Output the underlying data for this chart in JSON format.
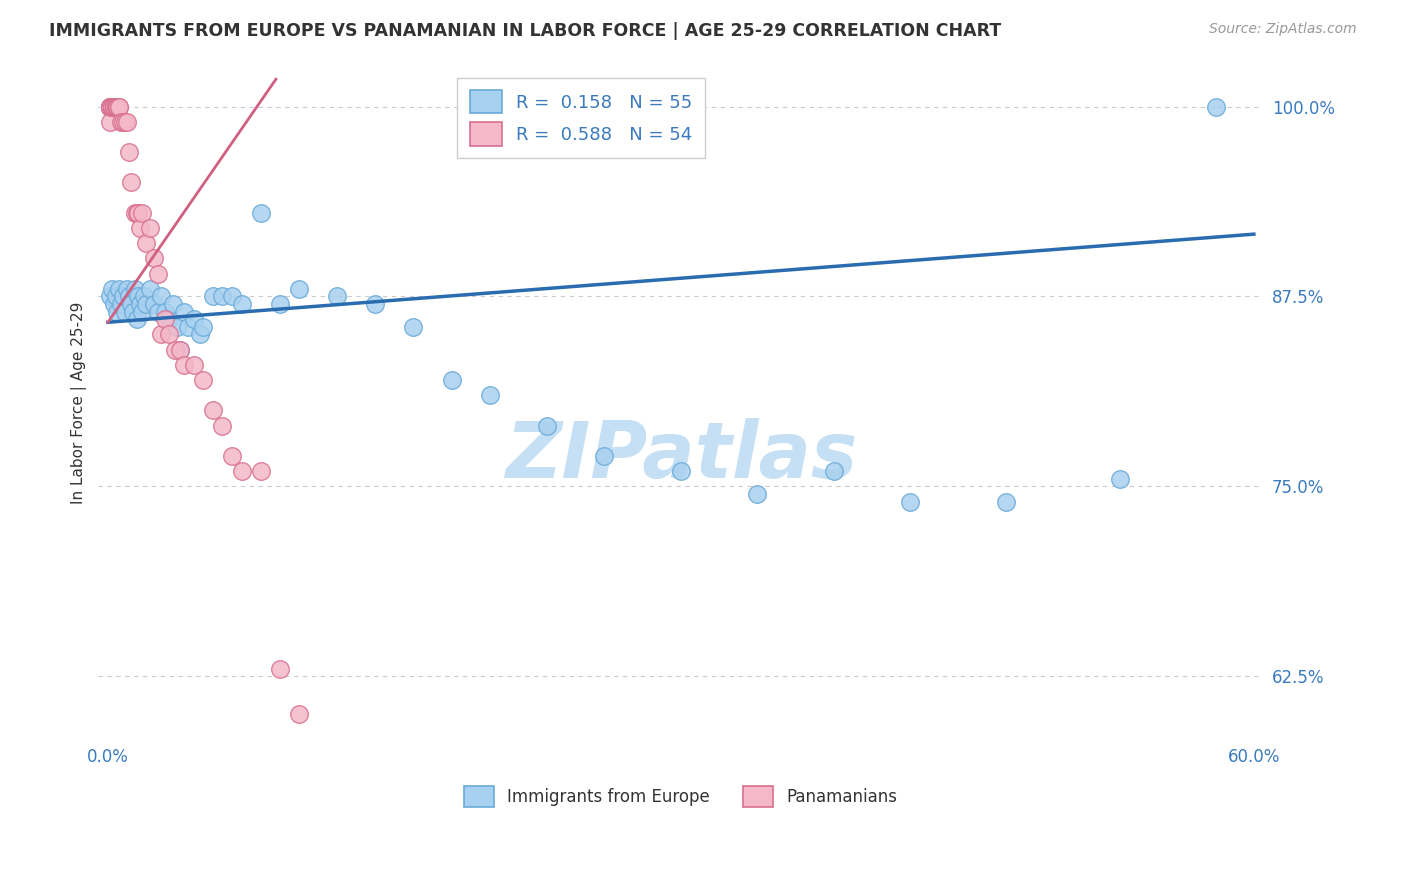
{
  "title": "IMMIGRANTS FROM EUROPE VS PANAMANIAN IN LABOR FORCE | AGE 25-29 CORRELATION CHART",
  "source": "Source: ZipAtlas.com",
  "ylabel": "In Labor Force | Age 25-29",
  "xlim": [
    -0.005,
    0.605
  ],
  "ylim": [
    0.585,
    1.025
  ],
  "xticks": [
    0.0,
    0.1,
    0.2,
    0.3,
    0.4,
    0.5,
    0.6
  ],
  "xticklabels": [
    "0.0%",
    "",
    "",
    "",
    "",
    "",
    "60.0%"
  ],
  "yticks_right": [
    0.625,
    0.75,
    0.875,
    1.0
  ],
  "ytick_labels_right": [
    "62.5%",
    "75.0%",
    "87.5%",
    "100.0%"
  ],
  "legend_label1": "Immigrants from Europe",
  "legend_label2": "Panamanians",
  "R1": 0.158,
  "N1": 55,
  "R2": 0.588,
  "N2": 54,
  "color_blue": "#a8d0f0",
  "color_blue_edge": "#6aaad8",
  "color_blue_line": "#2a6cb0",
  "color_pink": "#f4b8c8",
  "color_pink_edge": "#d87090",
  "color_pink_line": "#d06080",
  "color_blue_label": "#3a7bbf",
  "title_color": "#333333",
  "source_color": "#999999",
  "grid_color": "#cccccc",
  "background_color": "#ffffff",
  "blue_scatter_x": [
    0.001,
    0.002,
    0.003,
    0.004,
    0.005,
    0.006,
    0.007,
    0.008,
    0.009,
    0.01,
    0.011,
    0.012,
    0.013,
    0.014,
    0.015,
    0.016,
    0.017,
    0.018,
    0.019,
    0.02,
    0.022,
    0.024,
    0.026,
    0.028,
    0.03,
    0.032,
    0.034,
    0.036,
    0.038,
    0.04,
    0.042,
    0.045,
    0.048,
    0.05,
    0.055,
    0.06,
    0.065,
    0.07,
    0.08,
    0.09,
    0.1,
    0.12,
    0.14,
    0.16,
    0.18,
    0.2,
    0.23,
    0.26,
    0.3,
    0.34,
    0.38,
    0.42,
    0.47,
    0.53,
    0.58
  ],
  "blue_scatter_y": [
    0.875,
    0.88,
    0.87,
    0.875,
    0.865,
    0.88,
    0.87,
    0.875,
    0.865,
    0.88,
    0.875,
    0.87,
    0.865,
    0.88,
    0.86,
    0.875,
    0.87,
    0.865,
    0.875,
    0.87,
    0.88,
    0.87,
    0.865,
    0.875,
    0.865,
    0.86,
    0.87,
    0.855,
    0.84,
    0.865,
    0.855,
    0.86,
    0.85,
    0.855,
    0.875,
    0.875,
    0.875,
    0.87,
    0.93,
    0.87,
    0.88,
    0.875,
    0.87,
    0.855,
    0.82,
    0.81,
    0.79,
    0.77,
    0.76,
    0.745,
    0.76,
    0.74,
    0.74,
    0.755,
    1.0
  ],
  "pink_scatter_x": [
    0.001,
    0.001,
    0.001,
    0.001,
    0.001,
    0.001,
    0.001,
    0.001,
    0.001,
    0.001,
    0.002,
    0.002,
    0.002,
    0.002,
    0.003,
    0.003,
    0.003,
    0.004,
    0.004,
    0.005,
    0.005,
    0.005,
    0.006,
    0.006,
    0.007,
    0.008,
    0.009,
    0.01,
    0.011,
    0.012,
    0.014,
    0.015,
    0.016,
    0.017,
    0.018,
    0.02,
    0.022,
    0.024,
    0.026,
    0.028,
    0.03,
    0.032,
    0.035,
    0.038,
    0.04,
    0.045,
    0.05,
    0.055,
    0.06,
    0.065,
    0.07,
    0.08,
    0.09,
    0.1
  ],
  "pink_scatter_y": [
    1.0,
    1.0,
    1.0,
    1.0,
    1.0,
    1.0,
    1.0,
    1.0,
    1.0,
    0.99,
    1.0,
    1.0,
    1.0,
    1.0,
    1.0,
    1.0,
    1.0,
    1.0,
    1.0,
    1.0,
    1.0,
    1.0,
    1.0,
    1.0,
    0.99,
    0.99,
    0.99,
    0.99,
    0.97,
    0.95,
    0.93,
    0.93,
    0.93,
    0.92,
    0.93,
    0.91,
    0.92,
    0.9,
    0.89,
    0.85,
    0.86,
    0.85,
    0.84,
    0.84,
    0.83,
    0.83,
    0.82,
    0.8,
    0.79,
    0.77,
    0.76,
    0.76,
    0.63,
    0.6
  ],
  "blue_line_x": [
    0.0,
    0.6
  ],
  "blue_line_y": [
    0.858,
    0.916
  ],
  "pink_line_x": [
    0.0,
    0.088
  ],
  "pink_line_y": [
    0.858,
    1.018
  ],
  "watermark": "ZIPatlas",
  "watermark_color": "#c5dff5",
  "watermark_fontsize": 56
}
